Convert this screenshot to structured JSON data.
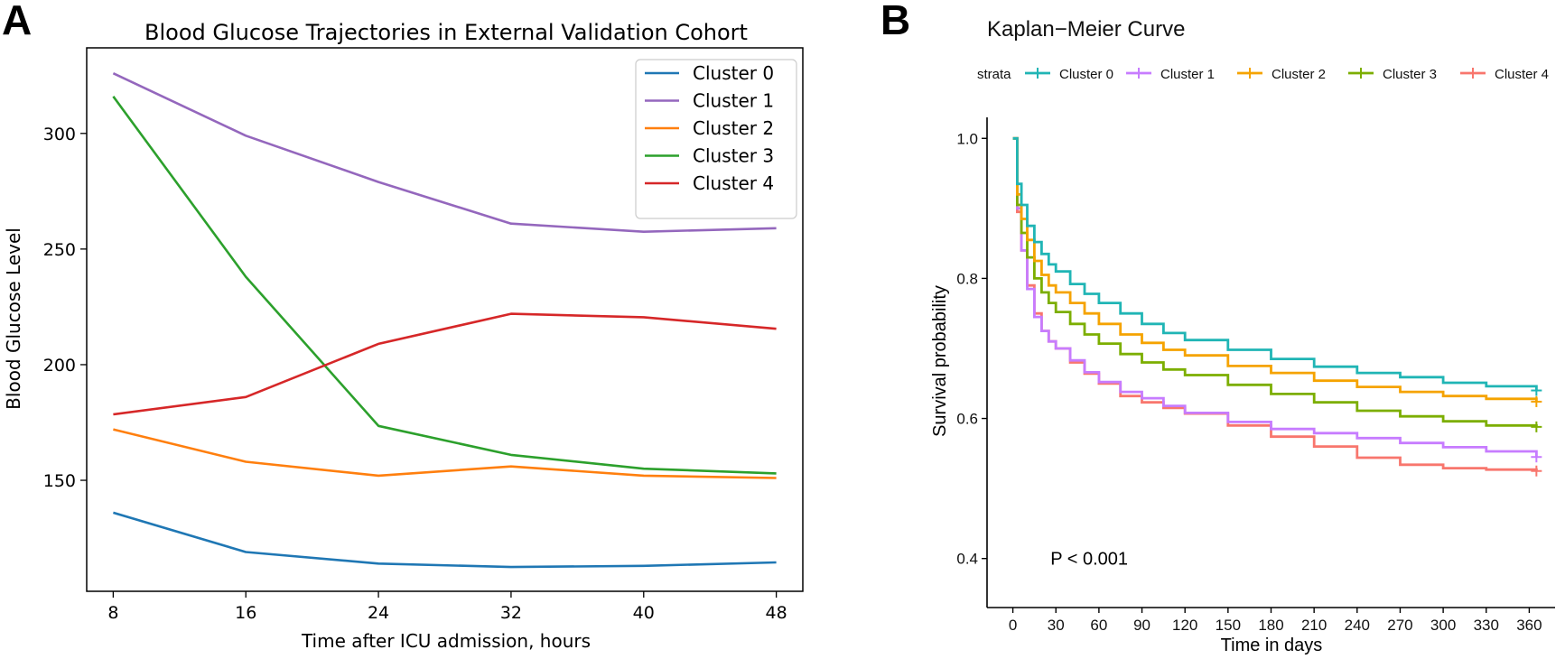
{
  "chart_data": [
    {
      "panel": "A",
      "type": "line",
      "title": "Blood Glucose Trajectories in External Validation Cohort",
      "xlabel": "Time after ICU admission, hours",
      "ylabel": "Blood Glucose Level",
      "x": [
        8,
        16,
        24,
        32,
        40,
        48
      ],
      "xticks": [
        8,
        16,
        24,
        32,
        40,
        48
      ],
      "yticks": [
        150,
        200,
        250,
        300
      ],
      "xlim": [
        6.4,
        49.6
      ],
      "ylim": [
        102,
        337
      ],
      "grid": false,
      "legend_position": "top-right",
      "series": [
        {
          "name": "Cluster 0",
          "color": "#1f77b4",
          "values": [
            136,
            119,
            114,
            112.5,
            113,
            114.5
          ]
        },
        {
          "name": "Cluster 1",
          "color": "#9467bd",
          "values": [
            326,
            299,
            279,
            261,
            257.5,
            259
          ]
        },
        {
          "name": "Cluster 2",
          "color": "#ff7f0e",
          "values": [
            172,
            158,
            152,
            156,
            152,
            151
          ]
        },
        {
          "name": "Cluster 3",
          "color": "#2ca02c",
          "values": [
            316,
            238,
            173.5,
            161,
            155,
            153
          ]
        },
        {
          "name": "Cluster 4",
          "color": "#d62728",
          "values": [
            178.5,
            186,
            209,
            222,
            220.5,
            215.5
          ]
        }
      ]
    },
    {
      "panel": "B",
      "type": "line",
      "subtype": "kaplan-meier step curve",
      "title": "Kaplan−Meier Curve",
      "legend_title": "strata",
      "legend_position": "top",
      "xlabel": "Time in days",
      "ylabel": "Survival probability",
      "xticks": [
        0,
        30,
        60,
        90,
        120,
        150,
        180,
        210,
        240,
        270,
        300,
        330,
        360
      ],
      "yticks": [
        0.4,
        0.6,
        0.8,
        1.0
      ],
      "ytick_labels": [
        "0.4",
        "0.6",
        "0.8",
        "1.0"
      ],
      "xlim": [
        -18,
        378
      ],
      "ylim": [
        0.33,
        1.03
      ],
      "annotation": "P < 0.001",
      "annotation_position": [
        30,
        0.4
      ],
      "series": [
        {
          "name": "Cluster 0",
          "color": "#20B5B5",
          "x": [
            0,
            3,
            6,
            10,
            15,
            20,
            25,
            30,
            40,
            50,
            60,
            75,
            90,
            105,
            120,
            150,
            180,
            210,
            240,
            270,
            300,
            330,
            365
          ],
          "y": [
            1.0,
            0.935,
            0.905,
            0.875,
            0.852,
            0.835,
            0.82,
            0.81,
            0.792,
            0.778,
            0.765,
            0.75,
            0.735,
            0.722,
            0.712,
            0.698,
            0.685,
            0.674,
            0.665,
            0.659,
            0.651,
            0.646,
            0.64
          ]
        },
        {
          "name": "Cluster 1",
          "color": "#C77CFF",
          "x": [
            0,
            3,
            6,
            10,
            15,
            20,
            25,
            30,
            40,
            50,
            60,
            75,
            90,
            105,
            120,
            150,
            180,
            210,
            240,
            270,
            300,
            330,
            365
          ],
          "y": [
            1.0,
            0.9,
            0.84,
            0.785,
            0.745,
            0.725,
            0.71,
            0.7,
            0.683,
            0.666,
            0.652,
            0.638,
            0.629,
            0.618,
            0.608,
            0.595,
            0.585,
            0.579,
            0.572,
            0.565,
            0.559,
            0.553,
            0.545
          ]
        },
        {
          "name": "Cluster 2",
          "color": "#F5A300",
          "x": [
            0,
            3,
            6,
            10,
            15,
            20,
            25,
            30,
            40,
            50,
            60,
            75,
            90,
            105,
            120,
            150,
            180,
            210,
            240,
            270,
            300,
            330,
            365
          ],
          "y": [
            1.0,
            0.92,
            0.885,
            0.855,
            0.825,
            0.805,
            0.79,
            0.78,
            0.765,
            0.75,
            0.735,
            0.72,
            0.708,
            0.698,
            0.69,
            0.675,
            0.665,
            0.654,
            0.645,
            0.638,
            0.632,
            0.628,
            0.624
          ]
        },
        {
          "name": "Cluster 3",
          "color": "#7CAE00",
          "x": [
            0,
            3,
            6,
            10,
            15,
            20,
            25,
            30,
            40,
            50,
            60,
            75,
            90,
            105,
            120,
            150,
            180,
            210,
            240,
            270,
            300,
            330,
            365
          ],
          "y": [
            1.0,
            0.905,
            0.865,
            0.83,
            0.8,
            0.78,
            0.765,
            0.752,
            0.735,
            0.72,
            0.707,
            0.692,
            0.68,
            0.67,
            0.662,
            0.648,
            0.635,
            0.623,
            0.611,
            0.603,
            0.596,
            0.59,
            0.588
          ]
        },
        {
          "name": "Cluster 4",
          "color": "#F8766D",
          "x": [
            0,
            3,
            6,
            10,
            15,
            20,
            25,
            30,
            40,
            50,
            60,
            75,
            90,
            105,
            120,
            150,
            180,
            210,
            240,
            270,
            300,
            330,
            365
          ],
          "y": [
            1.0,
            0.895,
            0.84,
            0.79,
            0.75,
            0.725,
            0.71,
            0.7,
            0.68,
            0.664,
            0.65,
            0.632,
            0.623,
            0.615,
            0.607,
            0.59,
            0.574,
            0.56,
            0.544,
            0.534,
            0.529,
            0.527,
            0.525
          ]
        }
      ]
    }
  ],
  "panel_labels": [
    "A",
    "B"
  ]
}
